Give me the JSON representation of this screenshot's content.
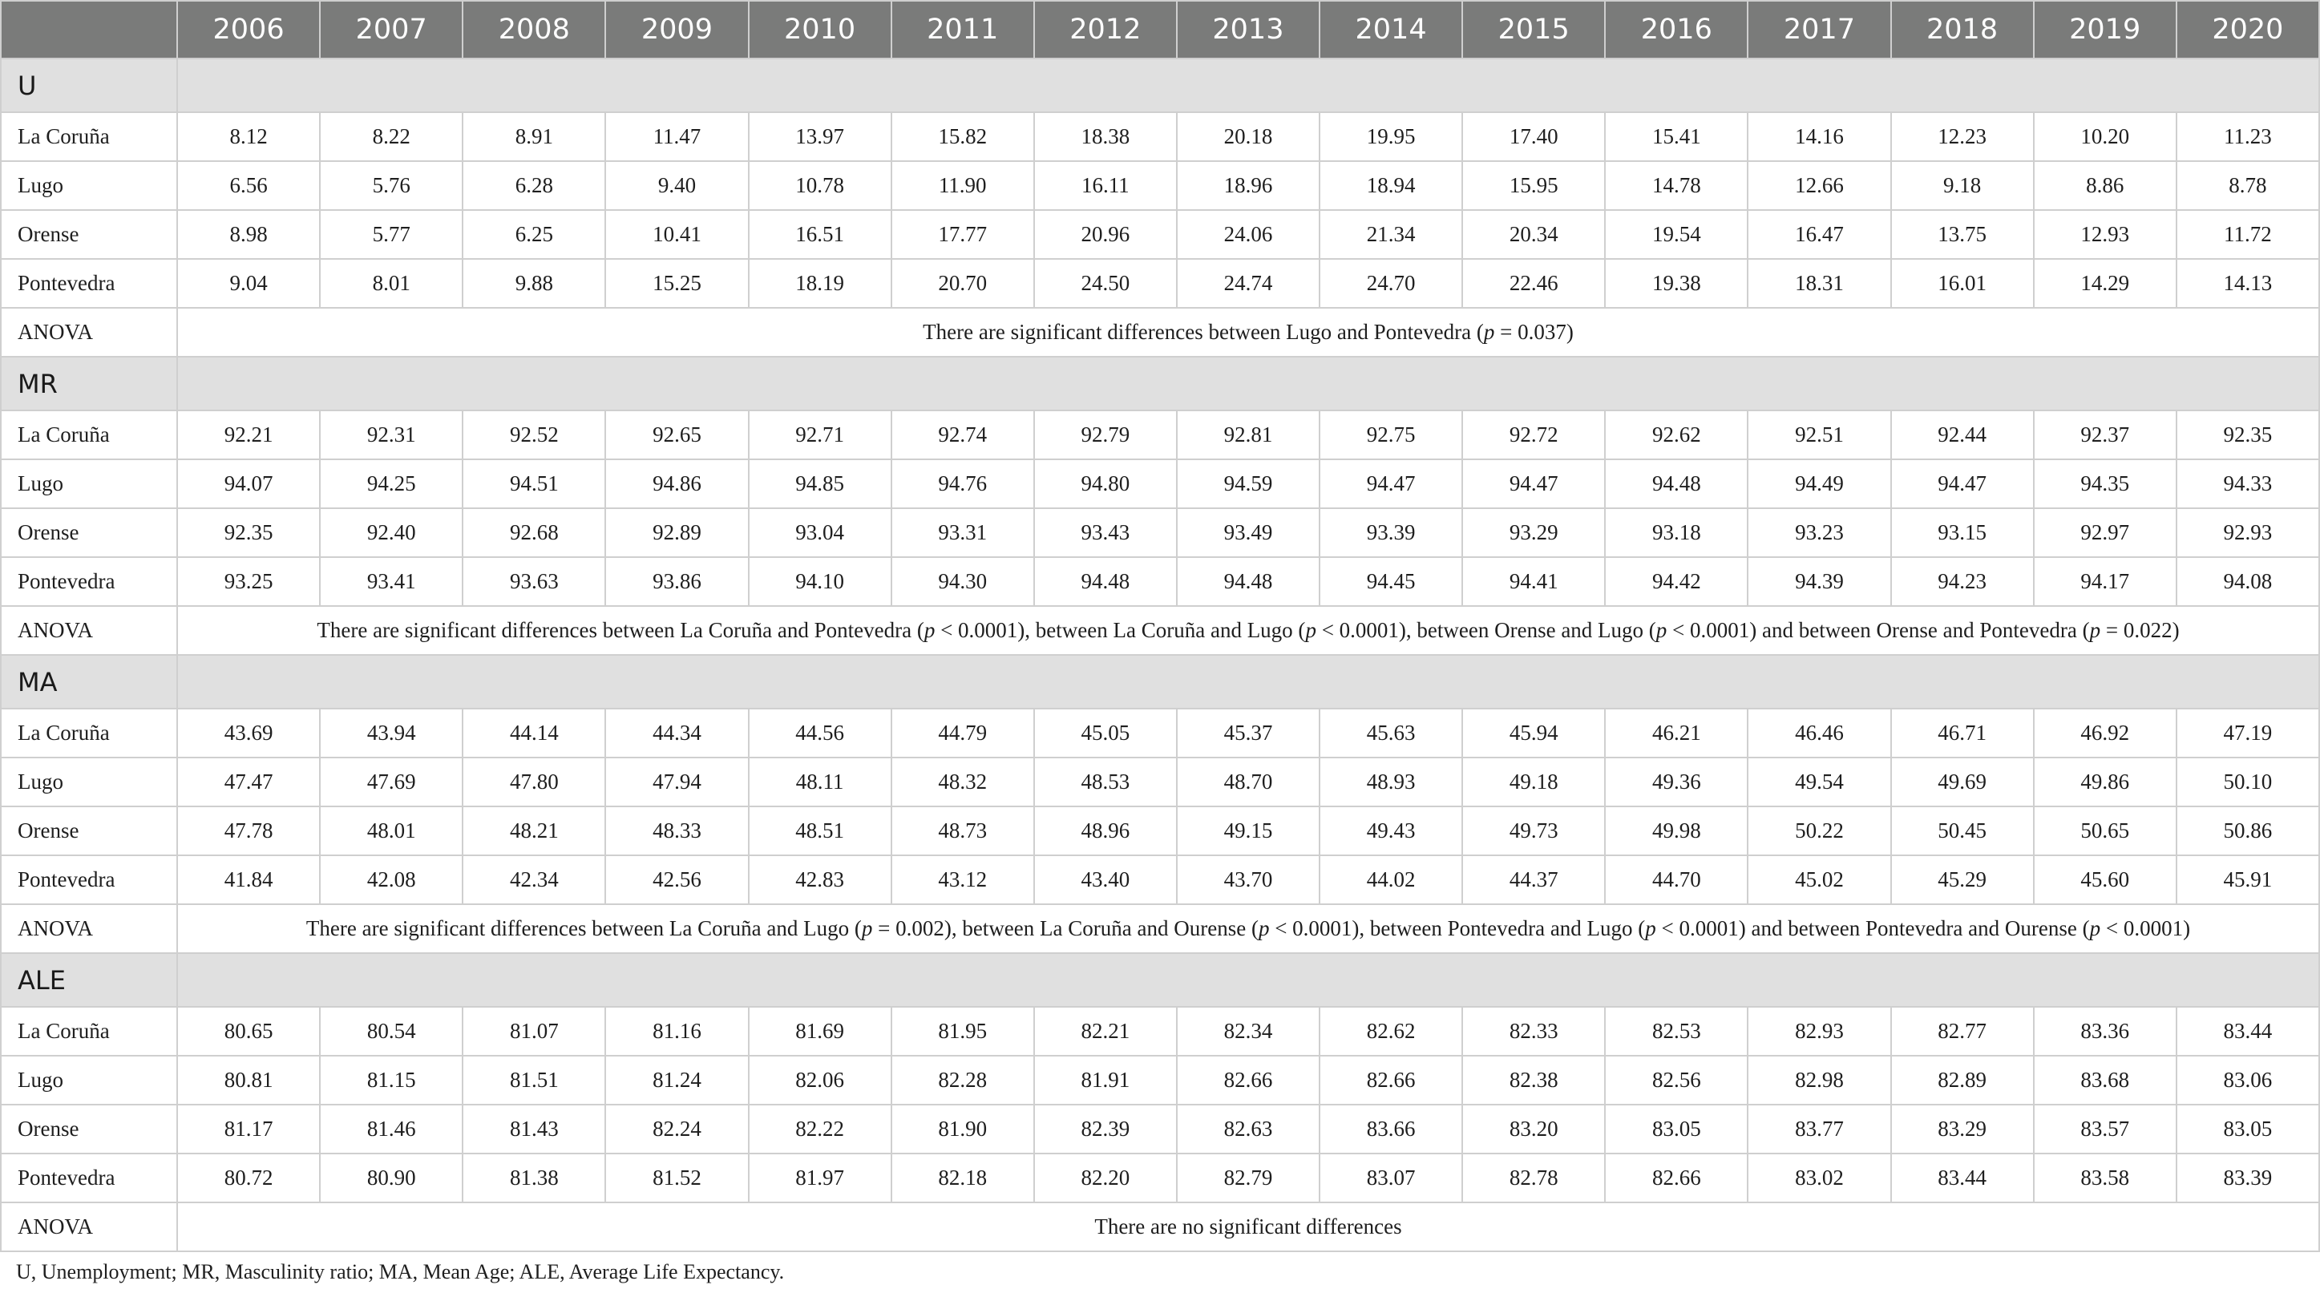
{
  "table": {
    "years": [
      "2006",
      "2007",
      "2008",
      "2009",
      "2010",
      "2011",
      "2012",
      "2013",
      "2014",
      "2015",
      "2016",
      "2017",
      "2018",
      "2019",
      "2020"
    ],
    "sections": [
      {
        "label": "U",
        "rows": [
          {
            "region": "La Coruña",
            "values": [
              "8.12",
              "8.22",
              "8.91",
              "11.47",
              "13.97",
              "15.82",
              "18.38",
              "20.18",
              "19.95",
              "17.40",
              "15.41",
              "14.16",
              "12.23",
              "10.20",
              "11.23"
            ]
          },
          {
            "region": "Lugo",
            "values": [
              "6.56",
              "5.76",
              "6.28",
              "9.40",
              "10.78",
              "11.90",
              "16.11",
              "18.96",
              "18.94",
              "15.95",
              "14.78",
              "12.66",
              "9.18",
              "8.86",
              "8.78"
            ]
          },
          {
            "region": "Orense",
            "values": [
              "8.98",
              "5.77",
              "6.25",
              "10.41",
              "16.51",
              "17.77",
              "20.96",
              "24.06",
              "21.34",
              "20.34",
              "19.54",
              "16.47",
              "13.75",
              "12.93",
              "11.72"
            ]
          },
          {
            "region": "Pontevedra",
            "values": [
              "9.04",
              "8.01",
              "9.88",
              "15.25",
              "18.19",
              "20.70",
              "24.50",
              "24.74",
              "24.70",
              "22.46",
              "19.38",
              "18.31",
              "16.01",
              "14.29",
              "14.13"
            ]
          }
        ],
        "anova_label": "ANOVA",
        "anova_parts": [
          {
            "t": "There are significant differences between Lugo and Pontevedra ("
          },
          {
            "t": "p",
            "i": true
          },
          {
            "t": " = 0.037)"
          }
        ]
      },
      {
        "label": "MR",
        "rows": [
          {
            "region": "La Coruña",
            "values": [
              "92.21",
              "92.31",
              "92.52",
              "92.65",
              "92.71",
              "92.74",
              "92.79",
              "92.81",
              "92.75",
              "92.72",
              "92.62",
              "92.51",
              "92.44",
              "92.37",
              "92.35"
            ]
          },
          {
            "region": "Lugo",
            "values": [
              "94.07",
              "94.25",
              "94.51",
              "94.86",
              "94.85",
              "94.76",
              "94.80",
              "94.59",
              "94.47",
              "94.47",
              "94.48",
              "94.49",
              "94.47",
              "94.35",
              "94.33"
            ]
          },
          {
            "region": "Orense",
            "values": [
              "92.35",
              "92.40",
              "92.68",
              "92.89",
              "93.04",
              "93.31",
              "93.43",
              "93.49",
              "93.39",
              "93.29",
              "93.18",
              "93.23",
              "93.15",
              "92.97",
              "92.93"
            ]
          },
          {
            "region": "Pontevedra",
            "values": [
              "93.25",
              "93.41",
              "93.63",
              "93.86",
              "94.10",
              "94.30",
              "94.48",
              "94.48",
              "94.45",
              "94.41",
              "94.42",
              "94.39",
              "94.23",
              "94.17",
              "94.08"
            ]
          }
        ],
        "anova_label": "ANOVA",
        "anova_parts": [
          {
            "t": "There are significant differences between La Coruña and Pontevedra ("
          },
          {
            "t": "p",
            "i": true
          },
          {
            "t": " < 0.0001), between La Coruña and Lugo ("
          },
          {
            "t": "p",
            "i": true
          },
          {
            "t": " < 0.0001), between Orense and Lugo ("
          },
          {
            "t": "p",
            "i": true
          },
          {
            "t": " < 0.0001) and between Orense and Pontevedra ("
          },
          {
            "t": "p",
            "i": true
          },
          {
            "t": " = 0.022)"
          }
        ]
      },
      {
        "label": "MA",
        "rows": [
          {
            "region": "La Coruña",
            "values": [
              "43.69",
              "43.94",
              "44.14",
              "44.34",
              "44.56",
              "44.79",
              "45.05",
              "45.37",
              "45.63",
              "45.94",
              "46.21",
              "46.46",
              "46.71",
              "46.92",
              "47.19"
            ]
          },
          {
            "region": "Lugo",
            "values": [
              "47.47",
              "47.69",
              "47.80",
              "47.94",
              "48.11",
              "48.32",
              "48.53",
              "48.70",
              "48.93",
              "49.18",
              "49.36",
              "49.54",
              "49.69",
              "49.86",
              "50.10"
            ]
          },
          {
            "region": "Orense",
            "values": [
              "47.78",
              "48.01",
              "48.21",
              "48.33",
              "48.51",
              "48.73",
              "48.96",
              "49.15",
              "49.43",
              "49.73",
              "49.98",
              "50.22",
              "50.45",
              "50.65",
              "50.86"
            ]
          },
          {
            "region": "Pontevedra",
            "values": [
              "41.84",
              "42.08",
              "42.34",
              "42.56",
              "42.83",
              "43.12",
              "43.40",
              "43.70",
              "44.02",
              "44.37",
              "44.70",
              "45.02",
              "45.29",
              "45.60",
              "45.91"
            ]
          }
        ],
        "anova_label": "ANOVA",
        "anova_parts": [
          {
            "t": "There are significant differences between La Coruña and Lugo ("
          },
          {
            "t": "p",
            "i": true
          },
          {
            "t": " = 0.002), between La Coruña and Ourense ("
          },
          {
            "t": "p",
            "i": true
          },
          {
            "t": " < 0.0001), between Pontevedra and Lugo ("
          },
          {
            "t": "p",
            "i": true
          },
          {
            "t": " < 0.0001) and between Pontevedra and Ourense ("
          },
          {
            "t": "p",
            "i": true
          },
          {
            "t": " < 0.0001)"
          }
        ]
      },
      {
        "label": "ALE",
        "rows": [
          {
            "region": "La Coruña",
            "values": [
              "80.65",
              "80.54",
              "81.07",
              "81.16",
              "81.69",
              "81.95",
              "82.21",
              "82.34",
              "82.62",
              "82.33",
              "82.53",
              "82.93",
              "82.77",
              "83.36",
              "83.44"
            ]
          },
          {
            "region": "Lugo",
            "values": [
              "80.81",
              "81.15",
              "81.51",
              "81.24",
              "82.06",
              "82.28",
              "81.91",
              "82.66",
              "82.66",
              "82.38",
              "82.56",
              "82.98",
              "82.89",
              "83.68",
              "83.06"
            ]
          },
          {
            "region": "Orense",
            "values": [
              "81.17",
              "81.46",
              "81.43",
              "82.24",
              "82.22",
              "81.90",
              "82.39",
              "82.63",
              "83.66",
              "83.20",
              "83.05",
              "83.77",
              "83.29",
              "83.57",
              "83.05"
            ]
          },
          {
            "region": "Pontevedra",
            "values": [
              "80.72",
              "80.90",
              "81.38",
              "81.52",
              "81.97",
              "82.18",
              "82.20",
              "82.79",
              "83.07",
              "82.78",
              "82.66",
              "83.02",
              "83.44",
              "83.58",
              "83.39"
            ]
          }
        ],
        "anova_label": "ANOVA",
        "anova_parts": [
          {
            "t": "There are no significant differences"
          }
        ]
      }
    ]
  },
  "footnote": "U, Unemployment; MR, Masculinity ratio; MA, Mean Age; ALE, Average Life Expectancy."
}
